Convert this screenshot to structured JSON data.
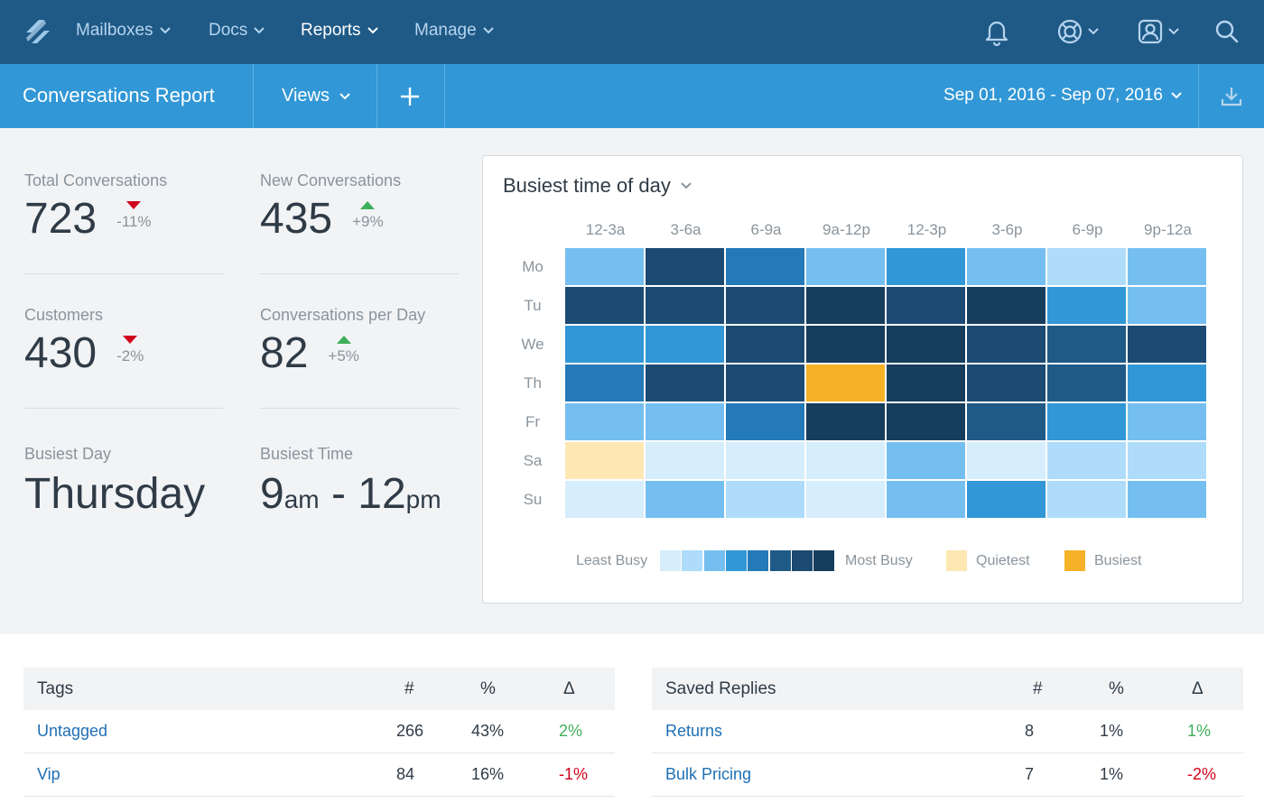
{
  "nav": {
    "items": [
      "Mailboxes",
      "Docs",
      "Reports",
      "Manage"
    ],
    "active": "Reports"
  },
  "subheader": {
    "title": "Conversations Report",
    "views_label": "Views",
    "date_range": "Sep 01, 2016 - Sep 07, 2016"
  },
  "stats": {
    "total": {
      "label": "Total Conversations",
      "value": "723",
      "delta": "-11%",
      "direction": "down"
    },
    "new": {
      "label": "New Conversations",
      "value": "435",
      "delta": "+9%",
      "direction": "up"
    },
    "customers": {
      "label": "Customers",
      "value": "430",
      "delta": "-2%",
      "direction": "down"
    },
    "per_day": {
      "label": "Conversations per Day",
      "value": "82",
      "delta": "+5%",
      "direction": "up"
    },
    "busiest_day": {
      "label": "Busiest Day",
      "value": "Thursday"
    },
    "busiest_time": {
      "label": "Busiest Time",
      "start": "9",
      "start_unit": "am",
      "sep": "-",
      "end": "12",
      "end_unit": "pm"
    }
  },
  "heatmap": {
    "title": "Busiest time of day",
    "columns": [
      "12-3a",
      "3-6a",
      "6-9a",
      "9a-12p",
      "12-3p",
      "3-6p",
      "6-9p",
      "9p-12a"
    ],
    "rows": [
      "Mo",
      "Tu",
      "We",
      "Th",
      "Fr",
      "Sa",
      "Su"
    ],
    "levels": [
      [
        3,
        7,
        5,
        3,
        4,
        3,
        2,
        3
      ],
      [
        7,
        7,
        7,
        8,
        7,
        8,
        4,
        3
      ],
      [
        4,
        4,
        7,
        8,
        8,
        7,
        6,
        7
      ],
      [
        5,
        7,
        7,
        "B",
        8,
        7,
        6,
        4
      ],
      [
        3,
        3,
        5,
        8,
        8,
        6,
        4,
        3
      ],
      [
        "Q",
        1,
        1,
        1,
        3,
        1,
        2,
        2
      ],
      [
        1,
        3,
        2,
        1,
        3,
        4,
        2,
        3
      ]
    ],
    "palette": [
      "#d6edfb",
      "#aedcfa",
      "#75bff0",
      "#3197d6",
      "#2479b8",
      "#1f5a87",
      "#1c4a72",
      "#173d5d"
    ],
    "quiet_color": "#fde7b3",
    "busy_color": "#f5b227",
    "legend": {
      "least": "Least Busy",
      "most": "Most Busy",
      "quietest": "Quietest",
      "busiest": "Busiest"
    }
  },
  "tags_table": {
    "title": "Tags",
    "headers": [
      "#",
      "%",
      "Δ"
    ],
    "rows": [
      {
        "name": "Untagged",
        "count": "266",
        "pct": "43%",
        "delta": "2%",
        "dir": "pos"
      },
      {
        "name": "Vip",
        "count": "84",
        "pct": "16%",
        "delta": "-1%",
        "dir": "neg"
      }
    ]
  },
  "replies_table": {
    "title": "Saved Replies",
    "headers": [
      "#",
      "%",
      "Δ"
    ],
    "rows": [
      {
        "name": "Returns",
        "count": "8",
        "pct": "1%",
        "delta": "1%",
        "dir": "pos"
      },
      {
        "name": "Bulk Pricing",
        "count": "7",
        "pct": "1%",
        "delta": "-2%",
        "dir": "neg"
      }
    ]
  }
}
